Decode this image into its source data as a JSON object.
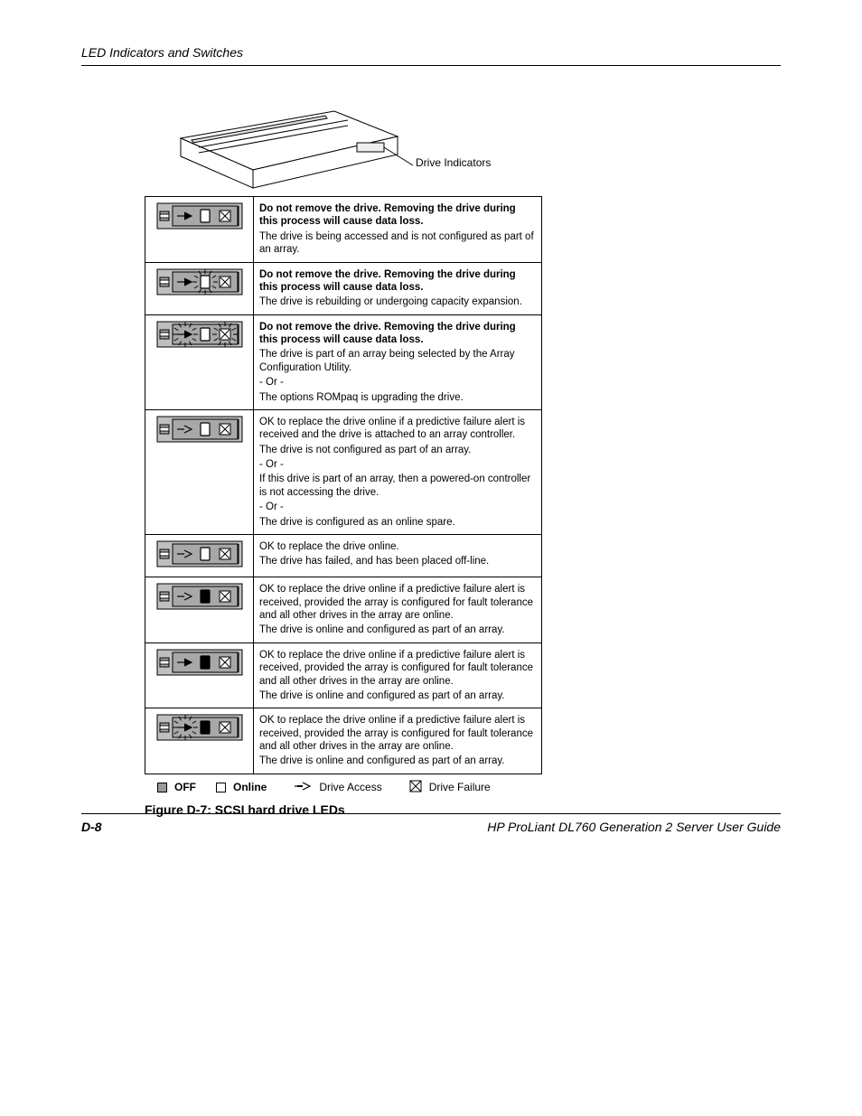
{
  "header": {
    "section_title": "LED Indicators and Switches"
  },
  "illustration": {
    "callout": "Drive\nIndicators"
  },
  "rows": [
    {
      "leds": {
        "access": "on",
        "online": "on-hollow",
        "failure": "off",
        "burst_access": false,
        "burst_online": false,
        "burst_failure": false
      },
      "lines": [
        {
          "warn": true,
          "text": "Do not remove the drive. Removing the drive during this process will cause data loss."
        },
        {
          "warn": false,
          "text": "The drive is being accessed and is not configured as part of an array."
        }
      ]
    },
    {
      "leds": {
        "access": "on",
        "online": "on-hollow",
        "failure": "off",
        "burst_access": false,
        "burst_online": true,
        "burst_failure": false
      },
      "lines": [
        {
          "warn": true,
          "text": "Do not remove the drive. Removing the drive during this process will cause data loss."
        },
        {
          "warn": false,
          "text": "The drive is rebuilding or undergoing capacity expansion."
        }
      ]
    },
    {
      "leds": {
        "access": "on",
        "online": "on-hollow",
        "failure": "off",
        "burst_access": true,
        "burst_online": false,
        "burst_failure": true
      },
      "lines": [
        {
          "warn": true,
          "text": "Do not remove the drive. Removing the drive during this process will cause data loss."
        },
        {
          "warn": false,
          "text": "The drive is part of an array being selected by the Array Configuration Utility."
        },
        {
          "warn": false,
          "text": "- Or -"
        },
        {
          "warn": false,
          "text": "The options ROMpaq is upgrading the drive."
        }
      ]
    },
    {
      "leds": {
        "access": "off",
        "online": "off-hollow",
        "failure": "off",
        "burst_access": false,
        "burst_online": false,
        "burst_failure": false
      },
      "lines": [
        {
          "warn": false,
          "text": "OK to replace the drive online if a predictive failure alert is received and the drive is attached to an array controller."
        },
        {
          "warn": false,
          "text": "The drive is not configured as part of an array."
        },
        {
          "warn": false,
          "text": "- Or -"
        },
        {
          "warn": false,
          "text": "If this drive is part of an array, then a powered-on controller is not accessing the drive."
        },
        {
          "warn": false,
          "text": "- Or -"
        },
        {
          "warn": false,
          "text": "The drive is configured as an online spare."
        }
      ]
    },
    {
      "leds": {
        "access": "off",
        "online": "off-hollow",
        "failure": "on-fail",
        "burst_access": false,
        "burst_online": false,
        "burst_failure": false
      },
      "lines": [
        {
          "warn": false,
          "text": "OK to replace the drive online."
        },
        {
          "warn": false,
          "text": "The drive has failed, and has been placed off-line."
        }
      ]
    },
    {
      "leds": {
        "access": "off",
        "online": "on-solid",
        "failure": "off",
        "burst_access": false,
        "burst_online": false,
        "burst_failure": false
      },
      "lines": [
        {
          "warn": false,
          "text": "OK to replace the drive online if a predictive failure alert is received, provided the array is configured for fault tolerance and all other drives in the array are online."
        },
        {
          "warn": false,
          "text": "The drive is online and configured as part of an array."
        }
      ]
    },
    {
      "leds": {
        "access": "on",
        "online": "on-solid",
        "failure": "off",
        "burst_access": false,
        "burst_online": false,
        "burst_failure": false
      },
      "lines": [
        {
          "warn": false,
          "text": "OK to replace the drive online if a predictive failure alert is received, provided the array is configured for fault tolerance and all other drives in the array are online."
        },
        {
          "warn": false,
          "text": "The drive is online and configured as part of an array."
        }
      ]
    },
    {
      "leds": {
        "access": "on",
        "online": "on-solid",
        "failure": "off",
        "burst_access": true,
        "burst_online": false,
        "burst_failure": false
      },
      "lines": [
        {
          "warn": false,
          "text": "OK to replace the drive online if a predictive failure alert is received, provided the array is configured for fault tolerance and all other drives in the array are online."
        },
        {
          "warn": false,
          "text": "The drive is online and configured as part of an array."
        }
      ]
    }
  ],
  "legend": {
    "off": "OFF",
    "online": "Online",
    "access": "Drive Access",
    "failure": "Drive Failure"
  },
  "caption": "Figure D-7:  SCSI hard drive LEDs",
  "footer": {
    "page_number": "D-8",
    "doc_title": "HP ProLiant DL760 Generation 2 Server User Guide"
  },
  "style": {
    "colors": {
      "text": "#000000",
      "border": "#000000",
      "off_fill": "#9a9a9a",
      "on_fill": "#ffffff",
      "background": "#ffffff"
    },
    "fonts": {
      "body_pt": 12,
      "caption_pt": 14,
      "header_pt": 14
    }
  }
}
